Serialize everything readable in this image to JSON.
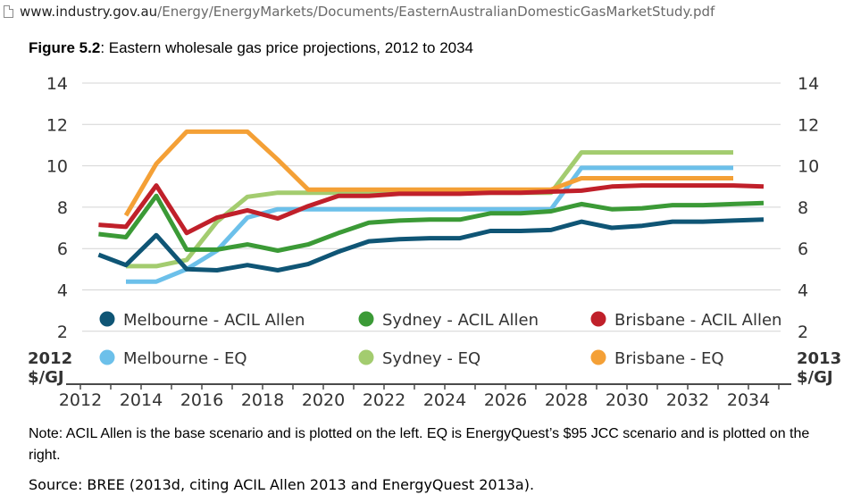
{
  "browser": {
    "url_host": "www.industry.gov.au",
    "url_path": "/Energy/EnergyMarkets/Documents/EasternAustralianDomesticGasMarketStudy.pdf",
    "page_icon": "document-icon"
  },
  "figure": {
    "label": "Figure 5.2",
    "caption": ": Eastern wholesale gas price projections, 2012 to 2034",
    "note": "Note: ACIL Allen is the base scenario and is plotted on the left. EQ is EnergyQuest’s $95 JCC scenario and is plotted on the right.",
    "source": "Source: BREE (2013d, citing ACIL Allen 2013 and EnergyQuest 2013a)."
  },
  "chart_data": {
    "type": "line",
    "title": "",
    "y_left_label_line1": "2012",
    "y_left_label_line2": "$/GJ",
    "y_right_label_line1": "2013",
    "y_right_label_line2": "$/GJ",
    "xlim": [
      2012,
      2035
    ],
    "ylim": [
      2,
      14
    ],
    "x_ticks": [
      "2012",
      "2014",
      "2016",
      "2018",
      "2020",
      "2022",
      "2024",
      "2026",
      "2028",
      "2030",
      "2032",
      "2034"
    ],
    "y_ticks": [
      "2",
      "4",
      "6",
      "8",
      "10",
      "12",
      "14"
    ],
    "grid": true,
    "legend_placement": "inside-bottom",
    "series": [
      {
        "name": "Melbourne - ACIL Allen",
        "color": "#0f5575",
        "x": [
          2012.6,
          2013.5,
          2014.5,
          2015.5,
          2016.5,
          2017.5,
          2018.5,
          2019.5,
          2020.5,
          2021.5,
          2022.5,
          2023.5,
          2024.5,
          2025.5,
          2026.5,
          2027.5,
          2028.5,
          2029.5,
          2030.5,
          2031.5,
          2032.5,
          2033.5,
          2034.5
        ],
        "y": [
          5.7,
          5.2,
          6.65,
          5.0,
          4.95,
          5.2,
          4.95,
          5.25,
          5.85,
          6.35,
          6.45,
          6.5,
          6.5,
          6.85,
          6.85,
          6.9,
          7.3,
          7.0,
          7.1,
          7.3,
          7.3,
          7.35,
          7.4
        ]
      },
      {
        "name": "Sydney - ACIL Allen",
        "color": "#3b9a36",
        "x": [
          2012.6,
          2013.5,
          2014.5,
          2015.5,
          2016.5,
          2017.5,
          2018.5,
          2019.5,
          2020.5,
          2021.5,
          2022.5,
          2023.5,
          2024.5,
          2025.5,
          2026.5,
          2027.5,
          2028.5,
          2029.5,
          2030.5,
          2031.5,
          2032.5,
          2033.5,
          2034.5
        ],
        "y": [
          6.7,
          6.55,
          8.55,
          5.95,
          5.95,
          6.2,
          5.9,
          6.2,
          6.75,
          7.25,
          7.35,
          7.4,
          7.4,
          7.7,
          7.7,
          7.8,
          8.15,
          7.9,
          7.95,
          8.1,
          8.1,
          8.15,
          8.2
        ]
      },
      {
        "name": "Brisbane - ACIL Allen",
        "color": "#c0202a",
        "x": [
          2012.6,
          2013.5,
          2014.5,
          2015.5,
          2016.5,
          2017.5,
          2018.5,
          2019.5,
          2020.5,
          2021.5,
          2022.5,
          2023.5,
          2024.5,
          2025.5,
          2026.5,
          2027.5,
          2028.5,
          2029.5,
          2030.5,
          2031.5,
          2032.5,
          2033.5,
          2034.5
        ],
        "y": [
          7.15,
          7.05,
          9.05,
          6.75,
          7.5,
          7.85,
          7.45,
          8.05,
          8.55,
          8.55,
          8.65,
          8.65,
          8.65,
          8.7,
          8.7,
          8.75,
          8.8,
          9.0,
          9.05,
          9.05,
          9.05,
          9.05,
          9.0
        ]
      },
      {
        "name": "Melbourne - EQ",
        "color": "#6cc0ea",
        "x": [
          2013.5,
          2014.5,
          2015.5,
          2016.5,
          2017.5,
          2018.5,
          2019.5,
          2020.5,
          2021.5,
          2022.5,
          2023.5,
          2024.5,
          2025.5,
          2026.5,
          2027.5,
          2028.5,
          2029.5,
          2030.5,
          2031.5,
          2032.5,
          2033.5
        ],
        "y": [
          4.4,
          4.4,
          5.0,
          5.9,
          7.5,
          7.9,
          7.9,
          7.9,
          7.9,
          7.9,
          7.9,
          7.9,
          7.9,
          7.9,
          7.9,
          9.9,
          9.9,
          9.9,
          9.9,
          9.9,
          9.9
        ]
      },
      {
        "name": "Sydney - EQ",
        "color": "#a3cc6f",
        "x": [
          2013.5,
          2014.5,
          2015.5,
          2016.5,
          2017.5,
          2018.5,
          2019.5,
          2020.5,
          2021.5,
          2022.5,
          2023.5,
          2024.5,
          2025.5,
          2026.5,
          2027.5,
          2028.5,
          2029.5,
          2030.5,
          2031.5,
          2032.5,
          2033.5
        ],
        "y": [
          5.15,
          5.15,
          5.45,
          7.3,
          8.5,
          8.7,
          8.7,
          8.7,
          8.7,
          8.7,
          8.7,
          8.7,
          8.7,
          8.7,
          8.7,
          10.65,
          10.65,
          10.65,
          10.65,
          10.65,
          10.65
        ]
      },
      {
        "name": "Brisbane - EQ",
        "color": "#f4a036",
        "x": [
          2013.5,
          2014.5,
          2015.5,
          2016.5,
          2017.5,
          2018.5,
          2019.5,
          2020.5,
          2021.5,
          2022.5,
          2023.5,
          2024.5,
          2025.5,
          2026.5,
          2027.5,
          2028.5,
          2029.5,
          2030.5,
          2031.5,
          2032.5,
          2033.5
        ],
        "y": [
          7.6,
          10.1,
          11.65,
          11.65,
          11.65,
          10.3,
          8.85,
          8.85,
          8.85,
          8.85,
          8.85,
          8.85,
          8.85,
          8.85,
          8.85,
          9.4,
          9.4,
          9.4,
          9.4,
          9.4,
          9.4
        ]
      }
    ]
  }
}
